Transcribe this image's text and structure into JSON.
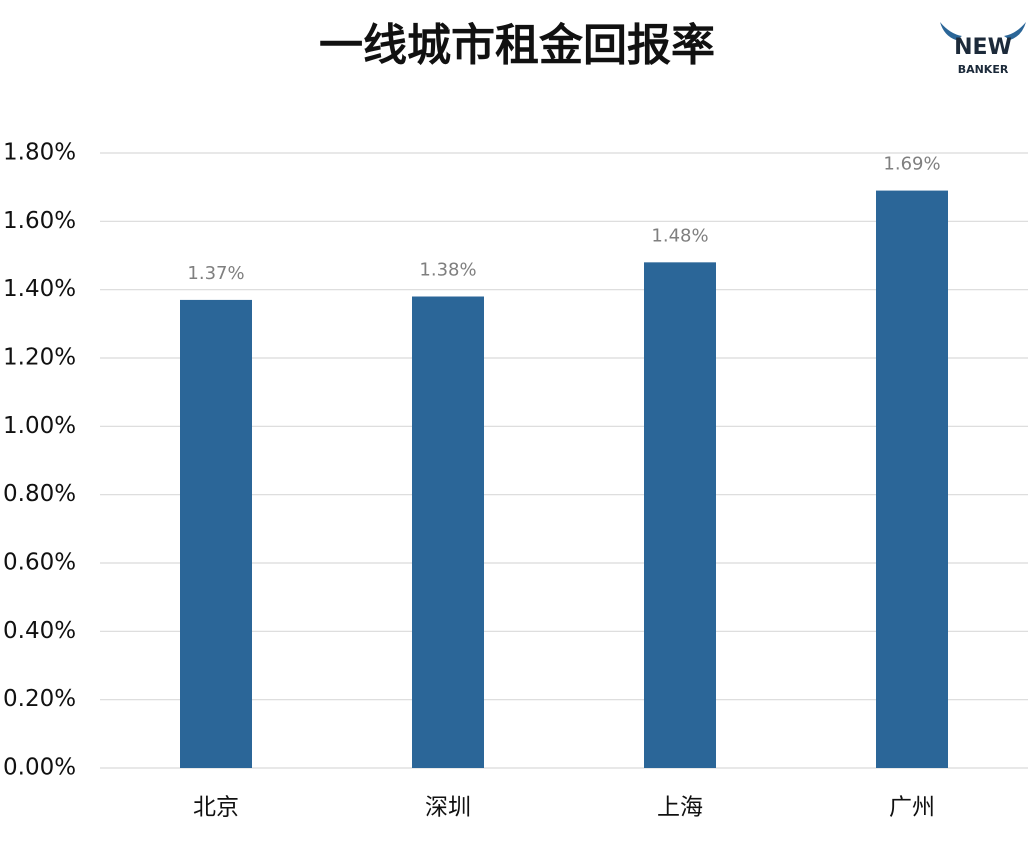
{
  "chart_data": {
    "type": "bar",
    "title": "一线城市租金回报率",
    "categories": [
      "北京",
      "深圳",
      "上海",
      "广州"
    ],
    "values": [
      1.37,
      1.38,
      1.48,
      1.69
    ],
    "value_labels": [
      "1.37%",
      "1.38%",
      "1.48%",
      "1.69%"
    ],
    "color": "#2b6698",
    "ylim": [
      0,
      1.8
    ],
    "yticks": [
      {
        "value": 0,
        "label": "0.00%"
      },
      {
        "value": 0.2,
        "label": "0.20%"
      },
      {
        "value": 0.4,
        "label": "0.40%"
      },
      {
        "value": 0.6,
        "label": "0.60%"
      },
      {
        "value": 0.8,
        "label": "0.80%"
      },
      {
        "value": 1.0,
        "label": "1.00%"
      },
      {
        "value": 1.2,
        "label": "1.20%"
      },
      {
        "value": 1.4,
        "label": "1.40%"
      },
      {
        "value": 1.6,
        "label": "1.60%"
      },
      {
        "value": 1.8,
        "label": "1.80%"
      }
    ],
    "grid": true
  },
  "logo": [
    "NEW",
    "BANKER"
  ]
}
